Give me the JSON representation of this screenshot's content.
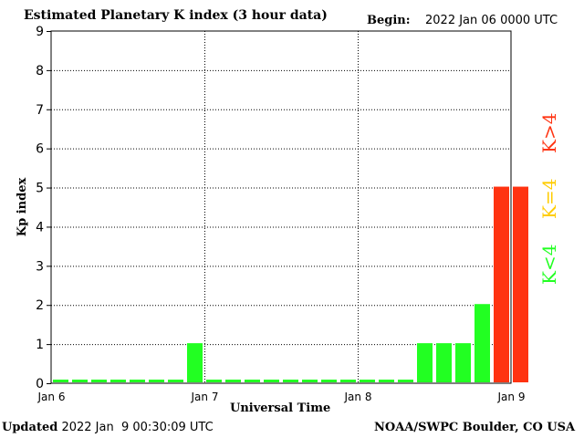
{
  "header": {
    "title": "Estimated Planetary K index (3 hour data)",
    "begin_label": "Begin:",
    "begin_value": "2022 Jan 06 0000 UTC"
  },
  "footer": {
    "updated_label": "Updated",
    "updated_value": "2022 Jan  9 00:30:09 UTC",
    "credit": "NOAA/SWPC Boulder, CO USA"
  },
  "legend": [
    {
      "label": "K<4",
      "color": "#22ff22"
    },
    {
      "label": "K=4",
      "color": "#ffcc00"
    },
    {
      "label": "K>4",
      "color": "#ff3311"
    }
  ],
  "chart_data": {
    "type": "bar",
    "title": "Estimated Planetary K index (3 hour data)",
    "xlabel": "Universal Time",
    "ylabel": "Kp index",
    "ylim": [
      0,
      9
    ],
    "yticks": [
      0,
      1,
      2,
      3,
      4,
      5,
      6,
      7,
      8,
      9
    ],
    "xticks": [
      "Jan 6",
      "Jan 7",
      "Jan 8",
      "Jan 9"
    ],
    "grid": true,
    "colors": {
      "below_4": "#22ff22",
      "equal_4": "#ffcc00",
      "above_4": "#ff3311"
    },
    "values": [
      0,
      0,
      0,
      0,
      0,
      0,
      0,
      1,
      0,
      0,
      0,
      0,
      0,
      0,
      0,
      0,
      0,
      0,
      0,
      1,
      1,
      1,
      2,
      5,
      5
    ]
  }
}
